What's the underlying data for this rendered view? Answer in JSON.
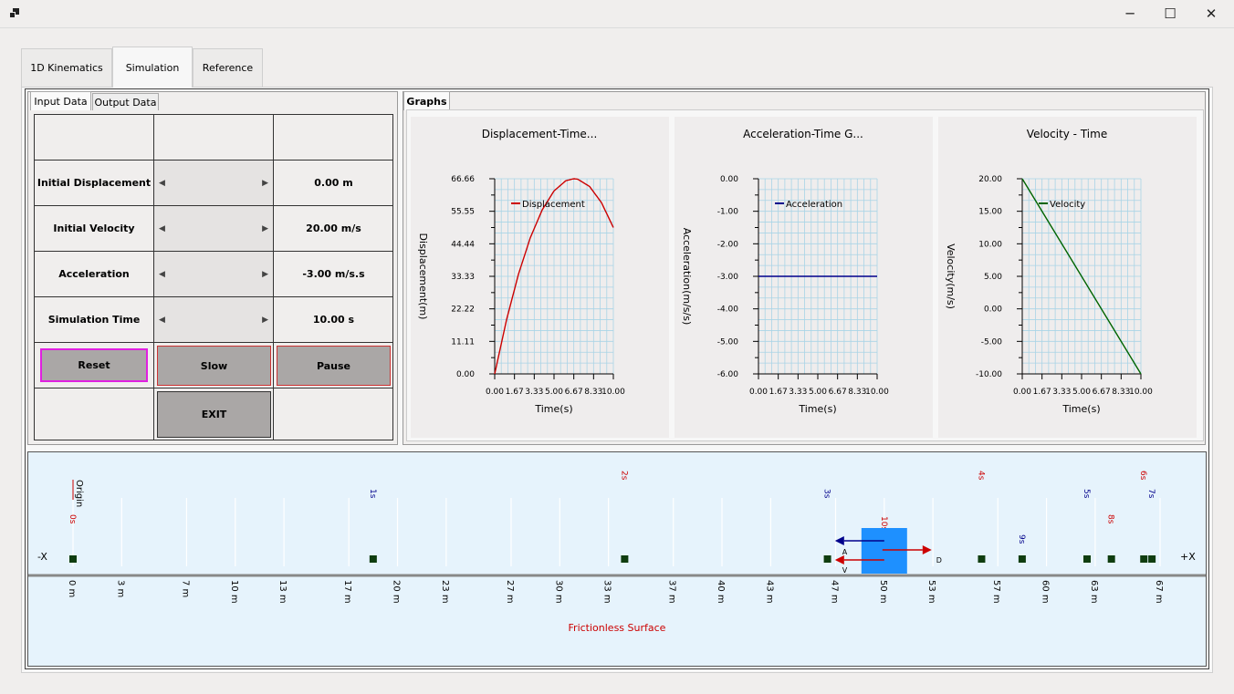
{
  "window": {
    "minimize": "─",
    "maximize": "☐",
    "close": "✕",
    "app_icon": "app-icon"
  },
  "tabs": [
    "1D Kinematics",
    "Simulation",
    "Reference"
  ],
  "left_tabs": [
    "Input Data",
    "Output Data"
  ],
  "graphs_tab": "Graphs",
  "inputs": [
    {
      "label": "Initial Displacement",
      "value": "0.00 m"
    },
    {
      "label": "Initial Velocity",
      "value": "20.00 m/s"
    },
    {
      "label": "Acceleration",
      "value": "-3.00 m/s.s"
    },
    {
      "label": "Simulation Time",
      "value": "10.00 s"
    }
  ],
  "buttons": {
    "reset": "Reset",
    "slow": "Slow",
    "pause": "Pause",
    "exit": "EXIT"
  },
  "chart_data": [
    {
      "type": "line",
      "title": "Displacement-Time...",
      "xlabel": "Time(s)",
      "ylabel": "Displacement(m)",
      "yticks": [
        "66.66",
        "55.55",
        "44.44",
        "33.33",
        "22.22",
        "11.11",
        "0.00"
      ],
      "xticks": [
        "0.00",
        "1.67",
        "3.33",
        "5.00",
        "6.67",
        "8.33",
        "10.00"
      ],
      "xlim": [
        0,
        10
      ],
      "ylim": [
        0,
        66.66
      ],
      "color": "#cc0000",
      "series": [
        {
          "name": "Displacement",
          "x": [
            0,
            1,
            2,
            3,
            4,
            5,
            6,
            6.67,
            7,
            8,
            9,
            10
          ],
          "y": [
            0,
            18.5,
            34,
            46.5,
            56,
            62.5,
            66,
            66.67,
            66.5,
            64,
            58.5,
            50
          ]
        }
      ],
      "legend": "top-left"
    },
    {
      "type": "line",
      "title": "Acceleration-Time  G...",
      "xlabel": "Time(s)",
      "ylabel": "Acceleration(m/s/s)",
      "yticks": [
        "0.00",
        "-1.00",
        "-2.00",
        "-3.00",
        "-4.00",
        "-5.00",
        "-6.00"
      ],
      "xticks": [
        "0.00",
        "1.67",
        "3.33",
        "5.00",
        "6.67",
        "8.33",
        "10.00"
      ],
      "xlim": [
        0,
        10
      ],
      "ylim": [
        -6,
        0
      ],
      "color": "#00008b",
      "series": [
        {
          "name": "Acceleration",
          "x": [
            0,
            10
          ],
          "y": [
            -3,
            -3
          ]
        }
      ],
      "legend": "top-left"
    },
    {
      "type": "line",
      "title": "Velocity - Time",
      "xlabel": "Time(s)",
      "ylabel": "Velocity(m/s)",
      "yticks": [
        "20.00",
        "15.00",
        "10.00",
        "5.00",
        "0.00",
        "-5.00",
        "-10.00"
      ],
      "xticks": [
        "0.00",
        "1.67",
        "3.33",
        "5.00",
        "6.67",
        "8.33",
        "10.00"
      ],
      "xlim": [
        0,
        10
      ],
      "ylim": [
        -10,
        20
      ],
      "color": "#006400",
      "series": [
        {
          "name": "Velocity",
          "x": [
            0,
            10
          ],
          "y": [
            20,
            -10
          ]
        }
      ],
      "legend": "top-left"
    }
  ],
  "sim": {
    "minus_x": "-X",
    "plus_x": "+X",
    "origin": "Origin",
    "surface": "Frictionless Surface",
    "ruler": [
      "0 m",
      "3 m",
      "7 m",
      "10 m",
      "13 m",
      "17 m",
      "20 m",
      "23 m",
      "27 m",
      "30 m",
      "33 m",
      "37 m",
      "40 m",
      "43 m",
      "47 m",
      "50 m",
      "53 m",
      "57 m",
      "60 m",
      "63 m",
      "67 m"
    ],
    "markers": [
      {
        "t": "0s",
        "pos": 0,
        "color": "#cc0000"
      },
      {
        "t": "1s",
        "pos": 18.5,
        "color": "#00008b"
      },
      {
        "t": "2s",
        "pos": 34,
        "color": "#cc0000"
      },
      {
        "t": "3s",
        "pos": 46.5,
        "color": "#00008b"
      },
      {
        "t": "4s",
        "pos": 56,
        "color": "#cc0000"
      },
      {
        "t": "5s",
        "pos": 62.5,
        "color": "#00008b"
      },
      {
        "t": "6s",
        "pos": 66,
        "color": "#cc0000"
      },
      {
        "t": "7s",
        "pos": 66.5,
        "color": "#00008b"
      },
      {
        "t": "8s",
        "pos": 64,
        "color": "#cc0000"
      },
      {
        "t": "9s",
        "pos": 58.5,
        "color": "#00008b"
      },
      {
        "t": "10s",
        "pos": 50,
        "color": "#cc0000"
      }
    ],
    "vector_labels": {
      "a": "A",
      "v": "V",
      "d": "D"
    }
  }
}
